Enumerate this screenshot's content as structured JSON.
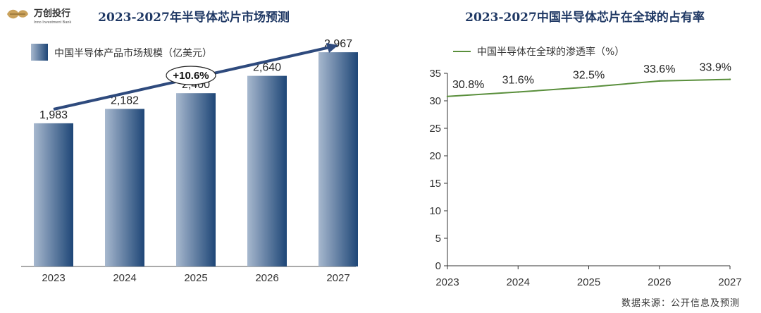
{
  "logo": {
    "cn": "万创投行",
    "en": "Inno Investment Bank"
  },
  "source": "数据来源：公开信息及预测",
  "chart_data": [
    {
      "type": "bar",
      "title": "2023-2027年半导体芯片市场预测",
      "legend": "中国半导体产品市场规模（亿美元）",
      "categories": [
        "2023",
        "2024",
        "2025",
        "2026",
        "2027"
      ],
      "values": [
        1983,
        2182,
        2400,
        2640,
        2967
      ],
      "value_labels": [
        "1,983",
        "2,182",
        "2,400",
        "2,640",
        "2,967"
      ],
      "growth_annotation": "+10.6%",
      "ylim": [
        0,
        3300
      ],
      "colors": {
        "bar_light": "#9DB0C8",
        "bar_dark": "#1F4778",
        "arrow": "#2E4A7D"
      }
    },
    {
      "type": "line",
      "title": "2023-2027中国半导体芯片在全球的占有率",
      "legend": "中国半导体在全球的渗透率（%）",
      "x": [
        "2023",
        "2024",
        "2025",
        "2026",
        "2027"
      ],
      "values": [
        30.8,
        31.6,
        32.5,
        33.6,
        33.9
      ],
      "value_labels": [
        "30.8%",
        "31.6%",
        "32.5%",
        "33.6%",
        "33.9%"
      ],
      "ylim": [
        0,
        35
      ],
      "yticks": [
        0,
        5,
        10,
        15,
        20,
        25,
        30,
        35
      ],
      "colors": {
        "line": "#5A8F3C",
        "axis": "#333333"
      }
    }
  ]
}
